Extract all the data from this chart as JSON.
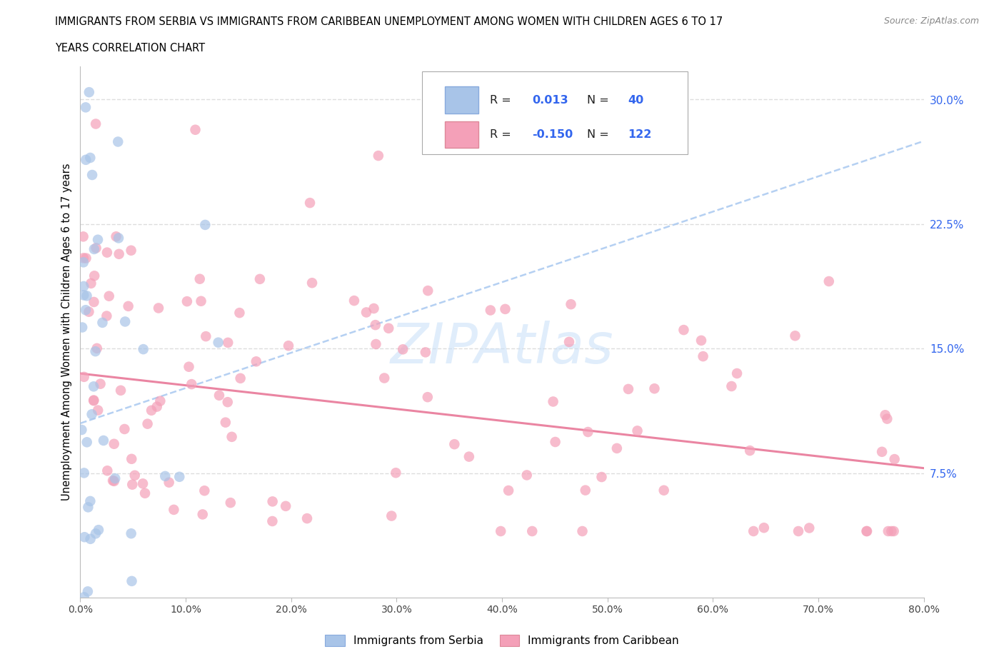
{
  "title_line1": "IMMIGRANTS FROM SERBIA VS IMMIGRANTS FROM CARIBBEAN UNEMPLOYMENT AMONG WOMEN WITH CHILDREN AGES 6 TO 17",
  "title_line2": "YEARS CORRELATION CHART",
  "source_text": "Source: ZipAtlas.com",
  "ylabel": "Unemployment Among Women with Children Ages 6 to 17 years",
  "xlim": [
    0.0,
    0.8
  ],
  "ylim": [
    0.0,
    0.32
  ],
  "xticks": [
    0.0,
    0.1,
    0.2,
    0.3,
    0.4,
    0.5,
    0.6,
    0.7,
    0.8
  ],
  "xticklabels": [
    "0.0%",
    "10.0%",
    "20.0%",
    "30.0%",
    "40.0%",
    "50.0%",
    "60.0%",
    "70.0%",
    "80.0%"
  ],
  "yticks_right": [
    0.075,
    0.15,
    0.225,
    0.3
  ],
  "ytick_right_labels": [
    "7.5%",
    "15.0%",
    "22.5%",
    "30.0%"
  ],
  "serbia_color": "#a8c4e8",
  "caribbean_color": "#f4a0b8",
  "serbia_R": 0.013,
  "serbia_N": 40,
  "caribbean_R": -0.15,
  "caribbean_N": 122,
  "watermark_text": "ZIPAtlas",
  "watermark_color": "#c8dff8",
  "grid_color": "#dddddd",
  "trend_serbia_color": "#a8c8f0",
  "trend_caribbean_color": "#e87898",
  "legend_r_n_color": "#3366ee"
}
